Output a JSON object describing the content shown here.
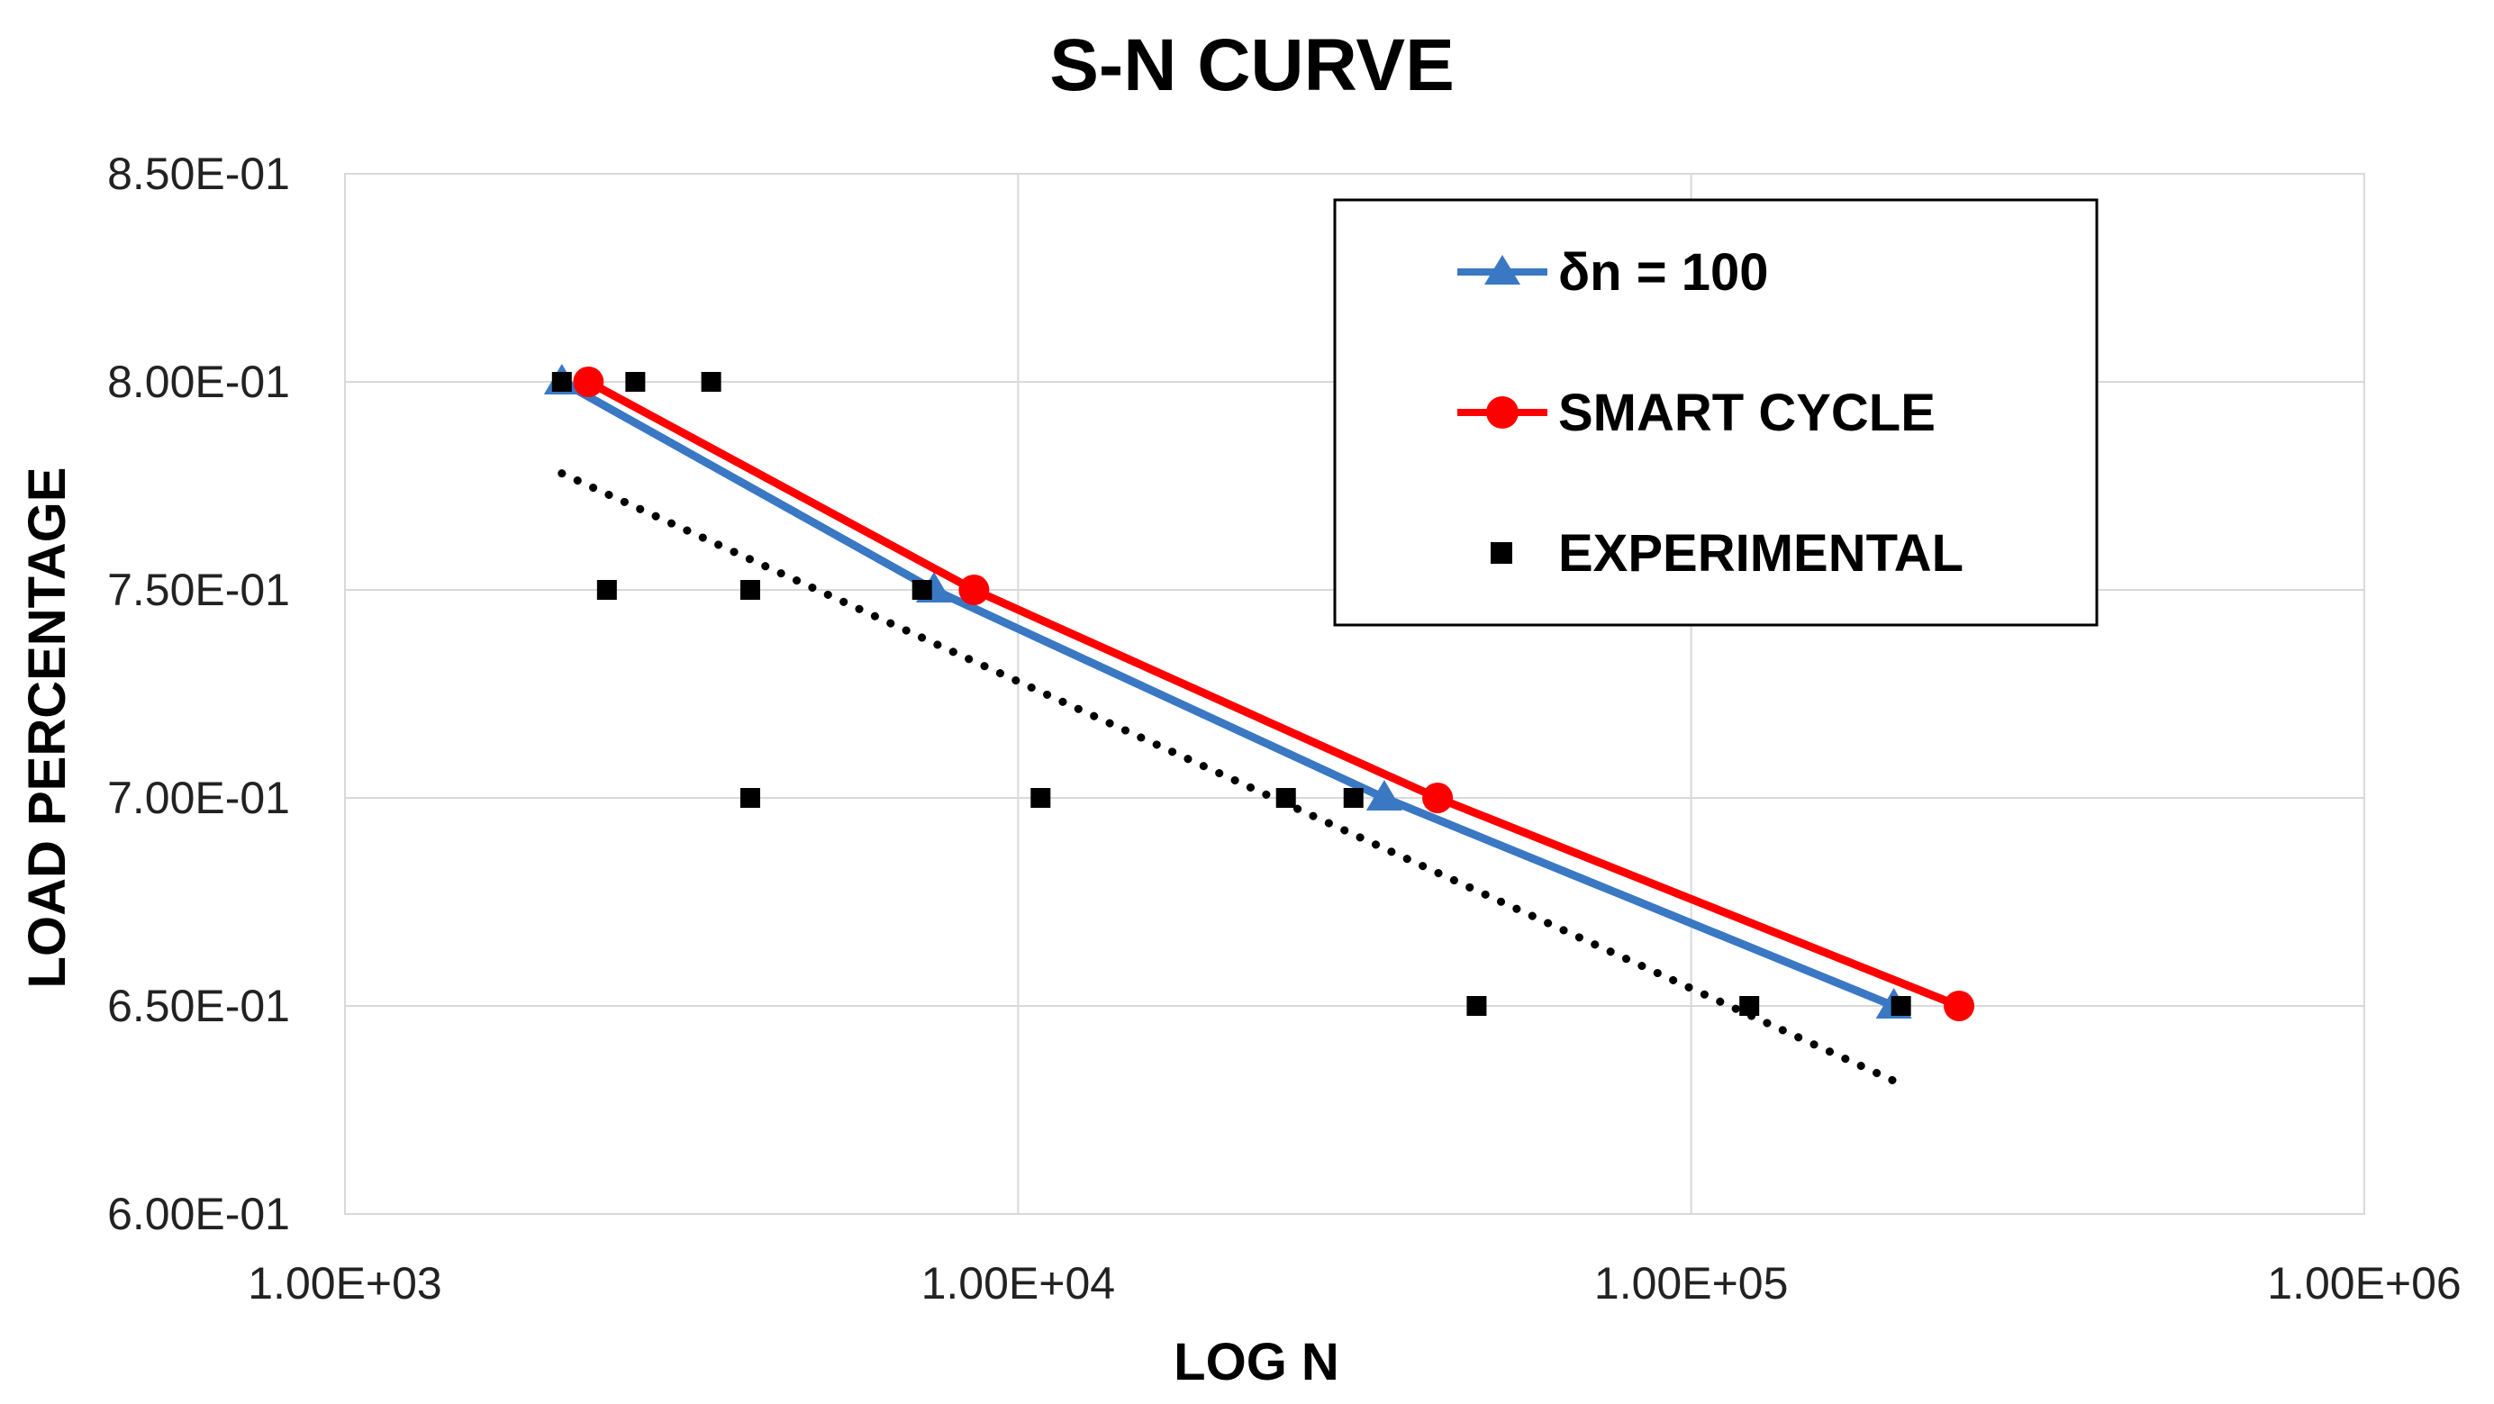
{
  "chart_data": {
    "type": "line",
    "title": "S-N CURVE",
    "xlabel": "LOG N",
    "ylabel": "LOAD PERCENTAGE",
    "xscale": "log",
    "xlim": [
      1000,
      1000000
    ],
    "ylim": [
      0.6,
      0.85
    ],
    "x_ticks": [
      1000,
      10000,
      100000,
      1000000
    ],
    "x_tick_labels": [
      "1.00E+03",
      "1.00E+04",
      "1.00E+05",
      "1.00E+06"
    ],
    "y_ticks": [
      0.6,
      0.65,
      0.7,
      0.75,
      0.8,
      0.85
    ],
    "y_tick_labels": [
      "6.00E-01",
      "6.50E-01",
      "7.00E-01",
      "7.50E-01",
      "8.00E-01",
      "8.50E-01"
    ],
    "grid": true,
    "legend_position": "top-right",
    "series": [
      {
        "name": "δn = 100",
        "kind": "line",
        "marker": "triangle",
        "color": "#3A78C4",
        "points": [
          [
            2100,
            0.8
          ],
          [
            7500,
            0.75
          ],
          [
            35000,
            0.7
          ],
          [
            200000,
            0.65
          ]
        ]
      },
      {
        "name": "SMART CYCLE",
        "kind": "line",
        "marker": "circle",
        "color": "#FF0000",
        "points": [
          [
            2300,
            0.8
          ],
          [
            8600,
            0.75
          ],
          [
            42000,
            0.7
          ],
          [
            250000,
            0.65
          ]
        ]
      },
      {
        "name": "EXPERIMENTAL",
        "kind": "scatter",
        "marker": "square",
        "color": "#000000",
        "points": [
          [
            2100,
            0.8
          ],
          [
            2700,
            0.8
          ],
          [
            3500,
            0.8
          ],
          [
            2450,
            0.75
          ],
          [
            4000,
            0.75
          ],
          [
            7200,
            0.75
          ],
          [
            4000,
            0.7
          ],
          [
            10800,
            0.7
          ],
          [
            25000,
            0.7
          ],
          [
            31500,
            0.7
          ],
          [
            48000,
            0.65
          ],
          [
            122000,
            0.65
          ],
          [
            205000,
            0.65
          ]
        ]
      }
    ],
    "trendline": {
      "style": "dotted",
      "color": "#000000",
      "points": [
        [
          2100,
          0.778
        ],
        [
          200000,
          0.632
        ]
      ]
    }
  }
}
